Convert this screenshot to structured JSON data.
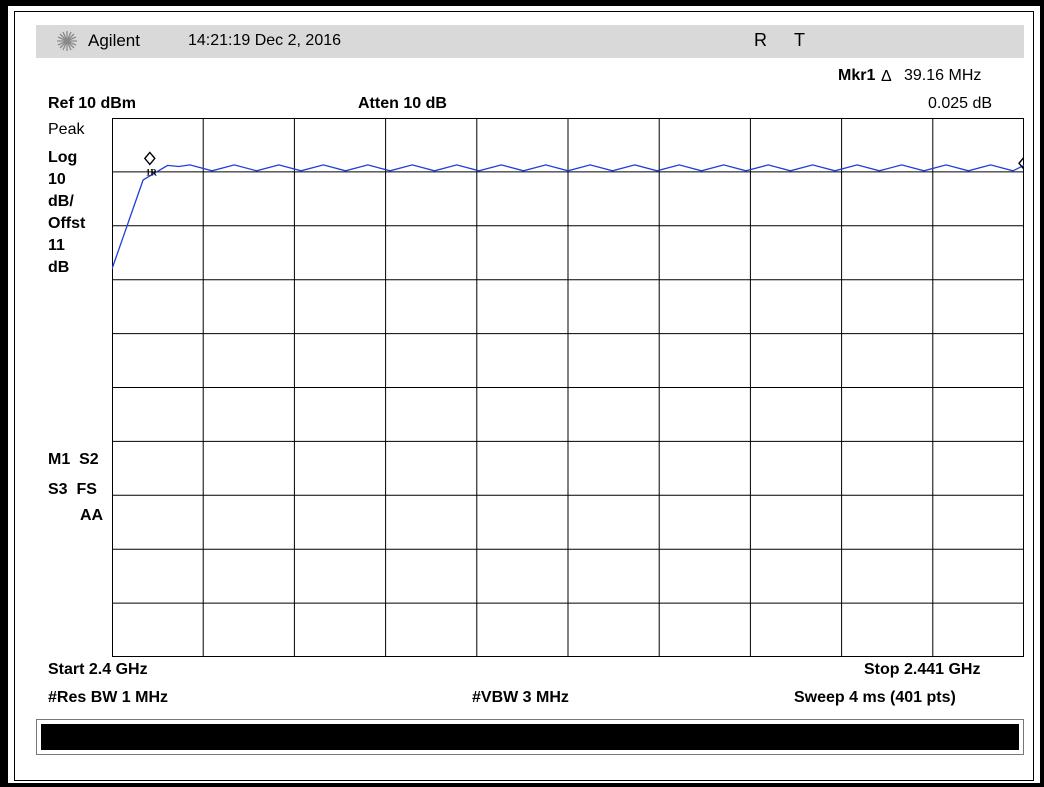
{
  "header": {
    "brand": "Agilent",
    "datetime": "14:21:19 Dec 2, 2016",
    "flag_r": "R",
    "flag_t": "T"
  },
  "marker": {
    "label": "Mkr1",
    "delta_symbol": "Δ",
    "freq": "39.16 MHz",
    "level": "0.025 dB",
    "tag": "1R"
  },
  "settings": {
    "ref_level": "Ref 10 dBm",
    "attenuation": "Atten 10 dB",
    "detector": "Peak",
    "scale_type": "Log",
    "scale_value": "10",
    "scale_unit": "dB/",
    "offset_label": "Offst",
    "offset_value": "11",
    "offset_unit": "dB",
    "status_1": "M1  S2",
    "status_2": "S3  FS",
    "status_3": "AA"
  },
  "footer": {
    "start": "Start 2.4 GHz",
    "stop": "Stop 2.441 GHz",
    "rbw": "#Res BW 1 MHz",
    "vbw": "#VBW 3 MHz",
    "sweep": "Sweep 4 ms (401 pts)"
  },
  "colors": {
    "trace": "#1f3fd8",
    "grid": "#000000",
    "titlebar": "#d9d9d9"
  },
  "chart_data": {
    "type": "line",
    "x_unit": "GHz",
    "xlim": [
      2.4,
      2.441
    ],
    "ylim": [
      -90,
      10
    ],
    "y_unit": "dBm",
    "grid": true,
    "divisions": {
      "x": 10,
      "y": 10
    },
    "series": [
      {
        "x": [
          2.4,
          2.4014,
          2.4025,
          2.403,
          2.4035,
          2.4045,
          2.4055,
          2.4065,
          2.4075,
          2.4085,
          2.4095,
          2.4105,
          2.4115,
          2.4125,
          2.4135,
          2.4145,
          2.4155,
          2.4165,
          2.4175,
          2.4185,
          2.4195,
          2.4205,
          2.4215,
          2.4225,
          2.4235,
          2.4245,
          2.4255,
          2.4265,
          2.4275,
          2.4285,
          2.4295,
          2.4305,
          2.4315,
          2.4325,
          2.4335,
          2.4345,
          2.4355,
          2.4365,
          2.4375,
          2.4385,
          2.4395,
          2.4405,
          2.441
        ],
        "y": [
          -18,
          -1.5,
          1.2,
          1.0,
          1.3,
          0.2,
          1.3,
          0.2,
          1.3,
          0.2,
          1.3,
          0.2,
          1.3,
          0.2,
          1.3,
          0.2,
          1.3,
          0.2,
          1.3,
          0.2,
          1.3,
          0.2,
          1.3,
          0.2,
          1.3,
          0.2,
          1.3,
          0.2,
          1.3,
          0.2,
          1.3,
          0.2,
          1.3,
          0.2,
          1.3,
          0.2,
          1.3,
          0.2,
          1.3,
          0.2,
          1.3,
          0.2,
          1.2
        ]
      }
    ],
    "markers": [
      {
        "id": "1R",
        "x": 2.4017,
        "y": 2.5
      },
      {
        "id": "1",
        "x": 2.441,
        "y": 1.6
      }
    ]
  }
}
